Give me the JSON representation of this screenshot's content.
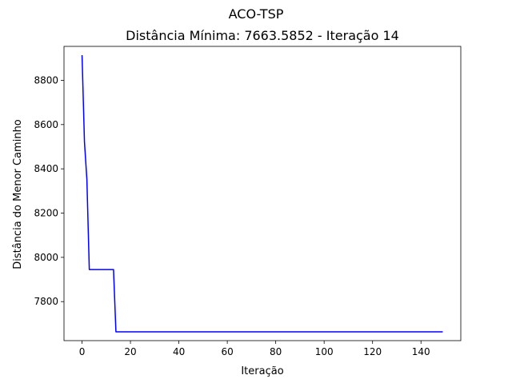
{
  "chart_data": {
    "type": "line",
    "suptitle": "ACO-TSP",
    "title": "Distância Mínima: 7663.5852 - Iteração 14",
    "xlabel": "Iteração",
    "ylabel": "Distância do Menor Caminho",
    "xlim": [
      -7.45,
      156.45
    ],
    "ylim": [
      7623.7,
      8953.4
    ],
    "xticks": [
      0,
      20,
      40,
      60,
      80,
      100,
      120,
      140
    ],
    "yticks": [
      7800,
      8000,
      8200,
      8400,
      8600,
      8800
    ],
    "grid": false,
    "series": [
      {
        "color": "#0000ff",
        "x": [
          0,
          1,
          2,
          3,
          4,
          5,
          6,
          7,
          8,
          9,
          10,
          11,
          12,
          13,
          14,
          149
        ],
        "y": [
          8913.5,
          8522.0,
          8352.0,
          7945.0,
          7945.0,
          7945.0,
          7945.0,
          7945.0,
          7945.0,
          7945.0,
          7945.0,
          7945.0,
          7945.0,
          7945.0,
          7663.5852,
          7663.5852
        ]
      }
    ]
  }
}
